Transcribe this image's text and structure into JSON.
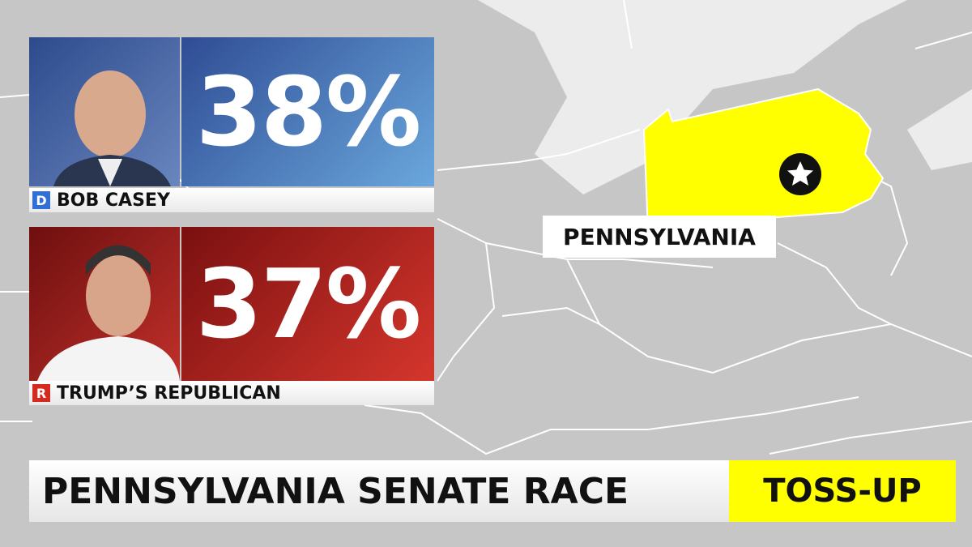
{
  "candidates": [
    {
      "party": "D",
      "name": "BOB CASEY",
      "percent": "38%"
    },
    {
      "party": "R",
      "name": "TRUMP’S REPUBLICAN",
      "percent": "37%"
    }
  ],
  "map_label": "PENNSYLVANIA",
  "banner": {
    "title": "PENNSYLVANIA SENATE RACE",
    "rating": "TOSS-UP"
  }
}
